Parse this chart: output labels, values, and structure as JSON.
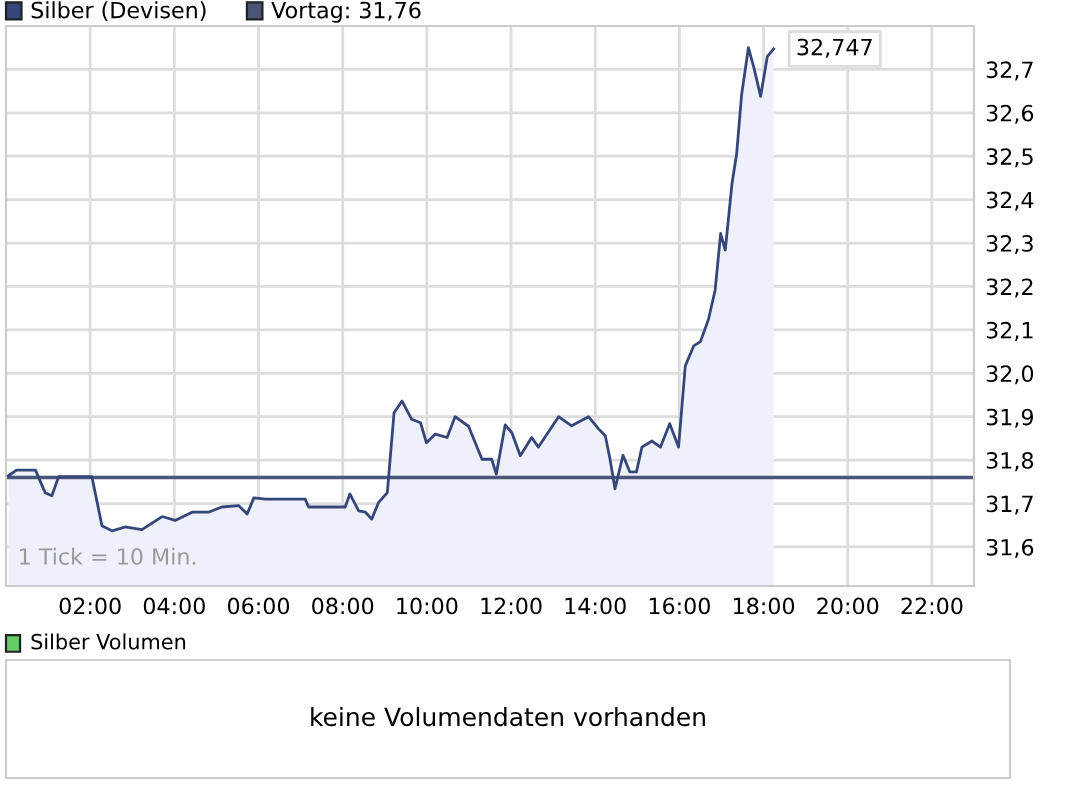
{
  "chart_data": [
    {
      "type": "area",
      "x": [
        0.06,
        0.25,
        0.7,
        0.93,
        1.09,
        1.25,
        2.04,
        2.28,
        2.52,
        2.83,
        3.23,
        3.47,
        3.71,
        4.02,
        4.42,
        4.81,
        5.13,
        5.53,
        5.73,
        5.89,
        6.16,
        7.11,
        7.19,
        8.06,
        8.17,
        8.38,
        8.54,
        8.69,
        8.85,
        9.06,
        9.22,
        9.41,
        9.64,
        9.85,
        9.99,
        10.2,
        10.48,
        10.67,
        10.99,
        11.31,
        11.54,
        11.65,
        11.86,
        12.02,
        12.22,
        12.49,
        12.65,
        13.13,
        13.44,
        13.84,
        14.08,
        14.24,
        14.35,
        14.47,
        14.66,
        14.82,
        14.98,
        15.11,
        15.35,
        15.55,
        15.77,
        15.98,
        16.14,
        16.34,
        16.5,
        16.69,
        16.85,
        16.98,
        17.09,
        17.25,
        17.36,
        17.48,
        17.64,
        17.77,
        17.93,
        18.09,
        18.24
      ],
      "series": [
        {
          "name": "Silber (Devisen)",
          "color": "#34467a",
          "values": [
            31.764,
            31.777,
            31.777,
            31.725,
            31.718,
            31.762,
            31.762,
            31.649,
            31.637,
            31.646,
            31.64,
            31.655,
            31.67,
            31.661,
            31.68,
            31.68,
            31.692,
            31.695,
            31.676,
            31.713,
            31.71,
            31.71,
            31.692,
            31.692,
            31.722,
            31.683,
            31.68,
            31.664,
            31.702,
            31.725,
            31.909,
            31.936,
            31.894,
            31.886,
            31.84,
            31.86,
            31.852,
            31.9,
            31.878,
            31.802,
            31.802,
            31.768,
            31.881,
            31.863,
            31.81,
            31.852,
            31.83,
            31.9,
            31.879,
            31.9,
            31.872,
            31.856,
            31.803,
            31.734,
            31.811,
            31.773,
            31.773,
            31.83,
            31.844,
            31.83,
            31.884,
            31.83,
            32.017,
            32.063,
            32.073,
            32.124,
            32.192,
            32.322,
            32.284,
            32.437,
            32.505,
            32.643,
            32.75,
            32.704,
            32.638,
            32.73,
            32.747
          ]
        }
      ],
      "xlim": [
        0,
        23
      ],
      "xticks": [
        {
          "value": 2,
          "label": "02:00"
        },
        {
          "value": 4,
          "label": "04:00"
        },
        {
          "value": 6,
          "label": "06:00"
        },
        {
          "value": 8,
          "label": "08:00"
        },
        {
          "value": 10,
          "label": "10:00"
        },
        {
          "value": 12,
          "label": "12:00"
        },
        {
          "value": 14,
          "label": "14:00"
        },
        {
          "value": 16,
          "label": "16:00"
        },
        {
          "value": 18,
          "label": "18:00"
        },
        {
          "value": 20,
          "label": "20:00"
        },
        {
          "value": 22,
          "label": "22:00"
        }
      ],
      "ylim": [
        31.51,
        32.8
      ],
      "yticks": [
        {
          "value": 31.6,
          "label": "31,6"
        },
        {
          "value": 31.7,
          "label": "31,7"
        },
        {
          "value": 31.8,
          "label": "31,8"
        },
        {
          "value": 31.9,
          "label": "31,9"
        },
        {
          "value": 32.0,
          "label": "32,0"
        },
        {
          "value": 32.1,
          "label": "32,1"
        },
        {
          "value": 32.2,
          "label": "32,2"
        },
        {
          "value": 32.3,
          "label": "32,3"
        },
        {
          "value": 32.4,
          "label": "32,4"
        },
        {
          "value": 32.5,
          "label": "32,5"
        },
        {
          "value": 32.6,
          "label": "32,6"
        },
        {
          "value": 32.7,
          "label": "32,7"
        }
      ],
      "ref_lines": [
        {
          "axis": "y",
          "value": 31.76,
          "label": "Vortag: 31,76",
          "color": "#4a5578"
        }
      ],
      "annotations": [
        "1 Tick = 10 Min.",
        {
          "text": "32,747",
          "x": 18.24,
          "y": 32.747
        }
      ],
      "grid": true,
      "legend": "top left"
    },
    {
      "type": "other",
      "title": "Silber Volumen",
      "annotations": [
        "keine Volumendaten vorhanden"
      ]
    }
  ]
}
